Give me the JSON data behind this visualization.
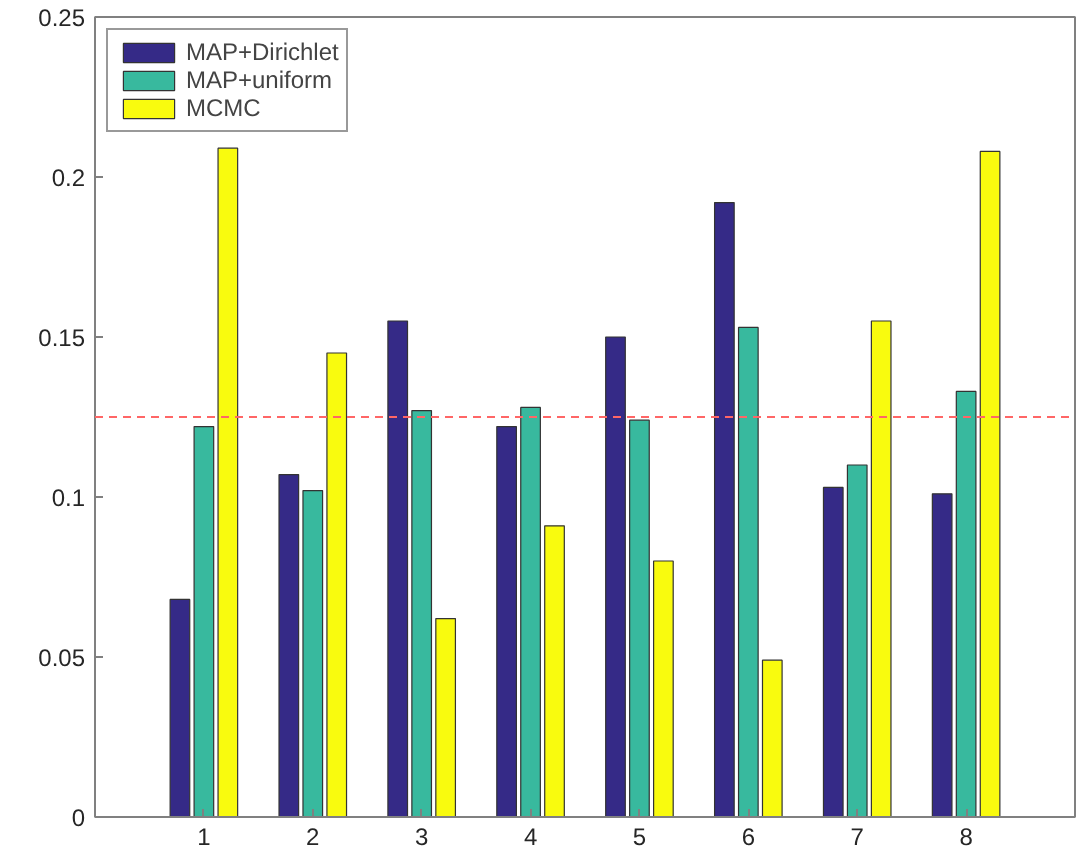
{
  "chart_data": {
    "type": "bar",
    "x": [
      1,
      2,
      3,
      4,
      5,
      6,
      7,
      8
    ],
    "xlim": [
      0,
      9
    ],
    "xticks": [
      1,
      2,
      3,
      4,
      5,
      6,
      7,
      8
    ],
    "ylim": [
      0,
      0.25
    ],
    "yticks": [
      0,
      0.05,
      0.1,
      0.15,
      0.2,
      0.25
    ],
    "grid": false,
    "legend": "top left",
    "series": [
      {
        "name": "MAP+Dirichlet",
        "color": "#352a87",
        "values": [
          0.068,
          0.107,
          0.155,
          0.122,
          0.15,
          0.192,
          0.103,
          0.101
        ]
      },
      {
        "name": "MAP+uniform",
        "color": "#38b99e",
        "values": [
          0.122,
          0.102,
          0.127,
          0.128,
          0.124,
          0.153,
          0.11,
          0.133
        ]
      },
      {
        "name": "MCMC",
        "color": "#f9fb0e",
        "values": [
          0.209,
          0.145,
          0.062,
          0.091,
          0.08,
          0.049,
          0.155,
          0.208
        ]
      }
    ],
    "ref_lines": [
      {
        "axis": "y",
        "value": 0.125,
        "color": "#ff6666",
        "line_style": "dashed"
      }
    ]
  }
}
